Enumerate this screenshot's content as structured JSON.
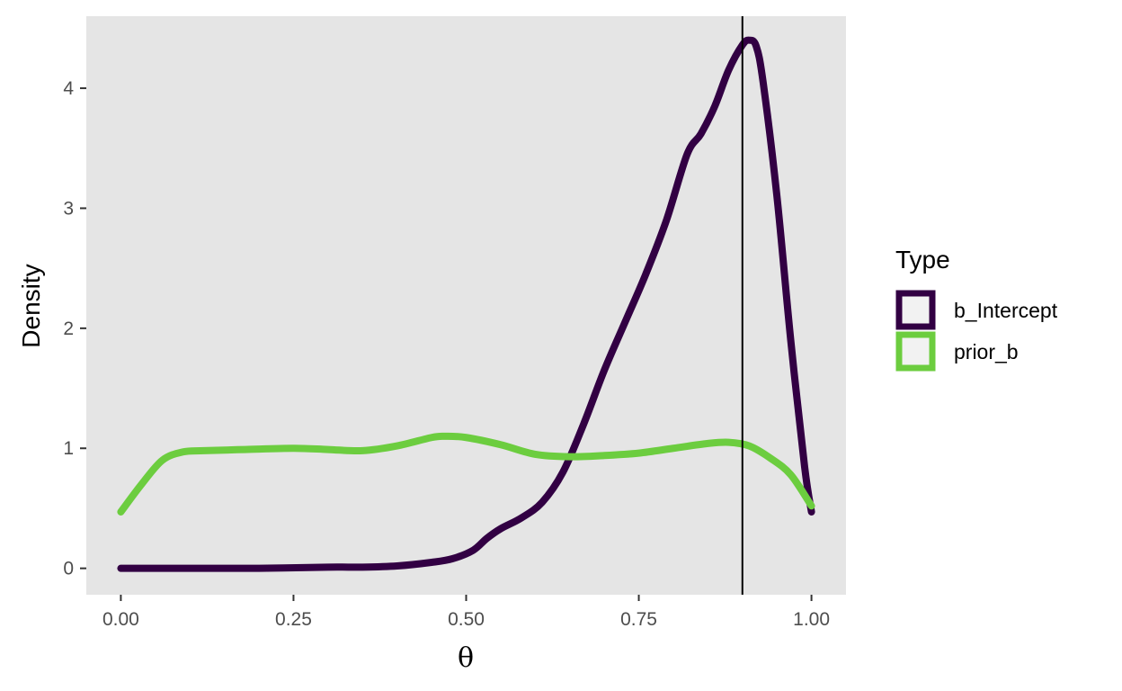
{
  "chart_data": {
    "type": "line",
    "title": "",
    "xlabel": "θ",
    "ylabel": "Density",
    "xlim": [
      -0.05,
      1.05
    ],
    "ylim": [
      -0.22,
      4.6
    ],
    "x_ticks": [
      0,
      0.25,
      0.5,
      0.75,
      1.0
    ],
    "x_tick_labels": [
      "0.00",
      "0.25",
      "0.50",
      "0.75",
      "1.00"
    ],
    "y_ticks": [
      0,
      1,
      2,
      3,
      4
    ],
    "y_tick_labels": [
      "0",
      "1",
      "2",
      "3",
      "4"
    ],
    "grid": false,
    "background": "#e5e5e5",
    "reference_line": {
      "x": 0.9,
      "color": "#000000"
    },
    "legend": {
      "title": "Type",
      "position": "right"
    },
    "series": [
      {
        "name": "b_Intercept",
        "color": "#320043",
        "points": [
          [
            0,
            0
          ],
          [
            0.1,
            0
          ],
          [
            0.2,
            0
          ],
          [
            0.3,
            0.01
          ],
          [
            0.35,
            0.01
          ],
          [
            0.4,
            0.02
          ],
          [
            0.45,
            0.05
          ],
          [
            0.48,
            0.08
          ],
          [
            0.51,
            0.15
          ],
          [
            0.53,
            0.25
          ],
          [
            0.55,
            0.33
          ],
          [
            0.58,
            0.42
          ],
          [
            0.61,
            0.55
          ],
          [
            0.64,
            0.8
          ],
          [
            0.67,
            1.2
          ],
          [
            0.7,
            1.65
          ],
          [
            0.73,
            2.05
          ],
          [
            0.76,
            2.45
          ],
          [
            0.79,
            2.9
          ],
          [
            0.82,
            3.45
          ],
          [
            0.84,
            3.62
          ],
          [
            0.86,
            3.85
          ],
          [
            0.88,
            4.15
          ],
          [
            0.9,
            4.36
          ],
          [
            0.91,
            4.4
          ],
          [
            0.92,
            4.35
          ],
          [
            0.93,
            4.05
          ],
          [
            0.95,
            3.1
          ],
          [
            0.97,
            1.9
          ],
          [
            0.99,
            0.85
          ],
          [
            1.0,
            0.47
          ]
        ]
      },
      {
        "name": "prior_b",
        "color": "#6ccd3f",
        "points": [
          [
            0,
            0.47
          ],
          [
            0.03,
            0.7
          ],
          [
            0.06,
            0.9
          ],
          [
            0.09,
            0.97
          ],
          [
            0.12,
            0.98
          ],
          [
            0.18,
            0.99
          ],
          [
            0.25,
            1.0
          ],
          [
            0.3,
            0.99
          ],
          [
            0.35,
            0.98
          ],
          [
            0.4,
            1.02
          ],
          [
            0.45,
            1.09
          ],
          [
            0.47,
            1.1
          ],
          [
            0.5,
            1.09
          ],
          [
            0.55,
            1.03
          ],
          [
            0.6,
            0.95
          ],
          [
            0.65,
            0.93
          ],
          [
            0.7,
            0.94
          ],
          [
            0.75,
            0.96
          ],
          [
            0.8,
            1.0
          ],
          [
            0.85,
            1.04
          ],
          [
            0.88,
            1.05
          ],
          [
            0.91,
            1.02
          ],
          [
            0.94,
            0.92
          ],
          [
            0.97,
            0.78
          ],
          [
            1.0,
            0.52
          ]
        ]
      }
    ]
  }
}
